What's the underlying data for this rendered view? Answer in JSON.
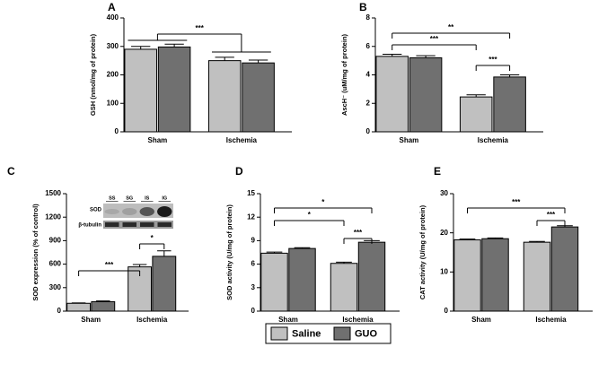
{
  "chart_data": [
    {
      "type": "bar",
      "panel": "A",
      "y_label": "GSH (nmol/mg of protein)",
      "categories": [
        "Sham",
        "Ischemia"
      ],
      "series": [
        {
          "name": "Saline",
          "color": "#c0c0c0",
          "values": [
            290,
            250
          ],
          "errors": [
            10,
            12
          ]
        },
        {
          "name": "GUO",
          "color": "#707070",
          "values": [
            298,
            242
          ],
          "errors": [
            10,
            10
          ]
        }
      ],
      "ylim": [
        0,
        400
      ],
      "yticks": [
        0,
        100,
        200,
        300,
        400
      ],
      "annotations": [
        "***"
      ]
    },
    {
      "type": "bar",
      "panel": "B",
      "y_label": "AscH⁻ (uM/mg of protein)",
      "categories": [
        "Sham",
        "Ischemia"
      ],
      "series": [
        {
          "name": "Saline",
          "color": "#c0c0c0",
          "values": [
            5.3,
            2.45
          ],
          "errors": [
            0.15,
            0.15
          ]
        },
        {
          "name": "GUO",
          "color": "#707070",
          "values": [
            5.2,
            3.85
          ],
          "errors": [
            0.15,
            0.15
          ]
        }
      ],
      "ylim": [
        0,
        8
      ],
      "yticks": [
        0,
        2,
        4,
        6,
        8
      ],
      "annotations": [
        "**",
        "***",
        "***"
      ]
    },
    {
      "type": "bar",
      "panel": "C",
      "y_label": "SOD expression (% of control)",
      "categories": [
        "Sham",
        "Ischemia"
      ],
      "series": [
        {
          "name": "Saline",
          "color": "#c0c0c0",
          "values": [
            100,
            565
          ],
          "errors": [
            5,
            30
          ]
        },
        {
          "name": "GUO",
          "color": "#707070",
          "values": [
            120,
            700
          ],
          "errors": [
            10,
            70
          ]
        }
      ],
      "ylim": [
        0,
        1500
      ],
      "yticks": [
        0,
        300,
        600,
        900,
        1200,
        1500
      ],
      "annotations": [
        "***",
        "*"
      ],
      "blot": {
        "lanes": [
          "SS",
          "SG",
          "IS",
          "IG"
        ],
        "rows": [
          "SOD",
          "β-tubulin"
        ]
      }
    },
    {
      "type": "bar",
      "panel": "D",
      "y_label": "SOD activity (U/mg of protein)",
      "categories": [
        "Sham",
        "Ischemia"
      ],
      "series": [
        {
          "name": "Saline",
          "color": "#c0c0c0",
          "values": [
            7.4,
            6.1
          ],
          "errors": [
            0.15,
            0.15
          ]
        },
        {
          "name": "GUO",
          "color": "#707070",
          "values": [
            8.0,
            8.8
          ],
          "errors": [
            0.1,
            0.2
          ]
        }
      ],
      "ylim": [
        0,
        15
      ],
      "yticks": [
        0,
        3,
        6,
        9,
        12,
        15
      ],
      "annotations": [
        "*",
        "*",
        "***"
      ]
    },
    {
      "type": "bar",
      "panel": "E",
      "y_label": "CAT activity (U/mg of protein)",
      "categories": [
        "Sham",
        "Ischemia"
      ],
      "series": [
        {
          "name": "Saline",
          "color": "#c0c0c0",
          "values": [
            18.2,
            17.6
          ],
          "errors": [
            0.2,
            0.2
          ]
        },
        {
          "name": "GUO",
          "color": "#707070",
          "values": [
            18.5,
            21.5
          ],
          "errors": [
            0.2,
            0.3
          ]
        }
      ],
      "ylim": [
        0,
        30
      ],
      "yticks": [
        0,
        10,
        20,
        30
      ],
      "annotations": [
        "***",
        "***"
      ]
    }
  ]
}
